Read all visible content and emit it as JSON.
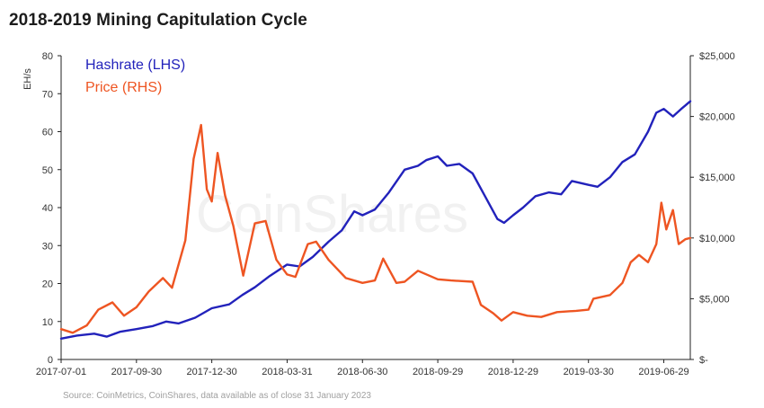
{
  "chart_data": {
    "type": "line",
    "title": "2018-2019 Mining Capitulation Cycle",
    "ylabel_left": "EH/s",
    "ylabel_right": "",
    "ylim_left": [
      0,
      80
    ],
    "ylim_right": [
      0,
      25000
    ],
    "yticks_left": [
      "0",
      "10",
      "20",
      "30",
      "40",
      "50",
      "60",
      "70",
      "80"
    ],
    "yticks_right": [
      "$-",
      "$5,000",
      "$10,000",
      "$15,000",
      "$20,000",
      "$25,000"
    ],
    "xticks": [
      "2017-07-01",
      "2017-09-30",
      "2017-12-30",
      "2018-03-31",
      "2018-06-30",
      "2018-09-29",
      "2018-12-29",
      "2019-03-30",
      "2019-06-29"
    ],
    "xlim": [
      "2017-07-01",
      "2019-07-31"
    ],
    "legend_position": "top-left",
    "grid": false,
    "watermark": "CoinShares",
    "source_note": "Source: CoinMetrics, CoinShares, data available as of close 31 January 2023",
    "series": [
      {
        "name": "Hashrate (LHS)",
        "axis": "left",
        "color": "#2222bb",
        "points": [
          [
            "2017-07-01",
            5.5
          ],
          [
            "2017-07-20",
            6.3
          ],
          [
            "2017-08-10",
            6.8
          ],
          [
            "2017-08-25",
            6.0
          ],
          [
            "2017-09-10",
            7.3
          ],
          [
            "2017-09-30",
            8.0
          ],
          [
            "2017-10-20",
            8.8
          ],
          [
            "2017-11-05",
            10.0
          ],
          [
            "2017-11-20",
            9.5
          ],
          [
            "2017-12-10",
            11.0
          ],
          [
            "2017-12-30",
            13.5
          ],
          [
            "2018-01-20",
            14.5
          ],
          [
            "2018-02-05",
            17.0
          ],
          [
            "2018-02-20",
            19.0
          ],
          [
            "2018-03-10",
            22.0
          ],
          [
            "2018-03-31",
            25.0
          ],
          [
            "2018-04-15",
            24.5
          ],
          [
            "2018-05-01",
            27.0
          ],
          [
            "2018-05-20",
            31.0
          ],
          [
            "2018-06-05",
            34.0
          ],
          [
            "2018-06-20",
            39.0
          ],
          [
            "2018-06-30",
            38.0
          ],
          [
            "2018-07-15",
            39.5
          ],
          [
            "2018-08-01",
            44.0
          ],
          [
            "2018-08-20",
            50.0
          ],
          [
            "2018-09-05",
            51.0
          ],
          [
            "2018-09-15",
            52.5
          ],
          [
            "2018-09-29",
            53.5
          ],
          [
            "2018-10-10",
            51.0
          ],
          [
            "2018-10-25",
            51.5
          ],
          [
            "2018-11-10",
            49.0
          ],
          [
            "2018-11-25",
            43.0
          ],
          [
            "2018-12-10",
            37.0
          ],
          [
            "2018-12-18",
            36.0
          ],
          [
            "2018-12-29",
            38.0
          ],
          [
            "2019-01-10",
            40.0
          ],
          [
            "2019-01-25",
            43.0
          ],
          [
            "2019-02-10",
            44.0
          ],
          [
            "2019-02-25",
            43.5
          ],
          [
            "2019-03-10",
            47.0
          ],
          [
            "2019-03-30",
            46.0
          ],
          [
            "2019-04-10",
            45.5
          ],
          [
            "2019-04-25",
            48.0
          ],
          [
            "2019-05-10",
            52.0
          ],
          [
            "2019-05-25",
            54.0
          ],
          [
            "2019-06-10",
            60.0
          ],
          [
            "2019-06-20",
            65.0
          ],
          [
            "2019-06-29",
            66.0
          ],
          [
            "2019-07-10",
            64.0
          ],
          [
            "2019-07-20",
            66.0
          ],
          [
            "2019-07-31",
            68.0
          ]
        ]
      },
      {
        "name": "Price (RHS)",
        "axis": "right",
        "color": "#ee5522",
        "points": [
          [
            "2017-07-01",
            2500
          ],
          [
            "2017-07-15",
            2200
          ],
          [
            "2017-08-01",
            2800
          ],
          [
            "2017-08-15",
            4100
          ],
          [
            "2017-09-01",
            4700
          ],
          [
            "2017-09-15",
            3600
          ],
          [
            "2017-09-30",
            4300
          ],
          [
            "2017-10-15",
            5600
          ],
          [
            "2017-11-01",
            6700
          ],
          [
            "2017-11-12",
            5900
          ],
          [
            "2017-11-28",
            9800
          ],
          [
            "2017-12-08",
            16500
          ],
          [
            "2017-12-17",
            19300
          ],
          [
            "2017-12-24",
            14000
          ],
          [
            "2017-12-30",
            13000
          ],
          [
            "2018-01-06",
            17000
          ],
          [
            "2018-01-15",
            13500
          ],
          [
            "2018-01-25",
            11000
          ],
          [
            "2018-02-06",
            6900
          ],
          [
            "2018-02-20",
            11200
          ],
          [
            "2018-03-05",
            11400
          ],
          [
            "2018-03-18",
            8200
          ],
          [
            "2018-03-31",
            7000
          ],
          [
            "2018-04-10",
            6800
          ],
          [
            "2018-04-25",
            9500
          ],
          [
            "2018-05-05",
            9700
          ],
          [
            "2018-05-20",
            8200
          ],
          [
            "2018-06-10",
            6700
          ],
          [
            "2018-06-30",
            6300
          ],
          [
            "2018-07-15",
            6500
          ],
          [
            "2018-07-25",
            8300
          ],
          [
            "2018-08-10",
            6300
          ],
          [
            "2018-08-20",
            6400
          ],
          [
            "2018-09-05",
            7300
          ],
          [
            "2018-09-29",
            6600
          ],
          [
            "2018-10-15",
            6500
          ],
          [
            "2018-11-10",
            6400
          ],
          [
            "2018-11-20",
            4500
          ],
          [
            "2018-12-05",
            3800
          ],
          [
            "2018-12-15",
            3200
          ],
          [
            "2018-12-29",
            3900
          ],
          [
            "2019-01-15",
            3600
          ],
          [
            "2019-02-01",
            3500
          ],
          [
            "2019-02-20",
            3900
          ],
          [
            "2019-03-15",
            4000
          ],
          [
            "2019-03-30",
            4100
          ],
          [
            "2019-04-05",
            5000
          ],
          [
            "2019-04-25",
            5300
          ],
          [
            "2019-05-10",
            6300
          ],
          [
            "2019-05-20",
            8000
          ],
          [
            "2019-05-30",
            8600
          ],
          [
            "2019-06-10",
            8000
          ],
          [
            "2019-06-20",
            9500
          ],
          [
            "2019-06-26",
            12900
          ],
          [
            "2019-07-02",
            10700
          ],
          [
            "2019-07-10",
            12300
          ],
          [
            "2019-07-17",
            9500
          ],
          [
            "2019-07-25",
            9900
          ],
          [
            "2019-07-31",
            10000
          ]
        ]
      }
    ]
  }
}
